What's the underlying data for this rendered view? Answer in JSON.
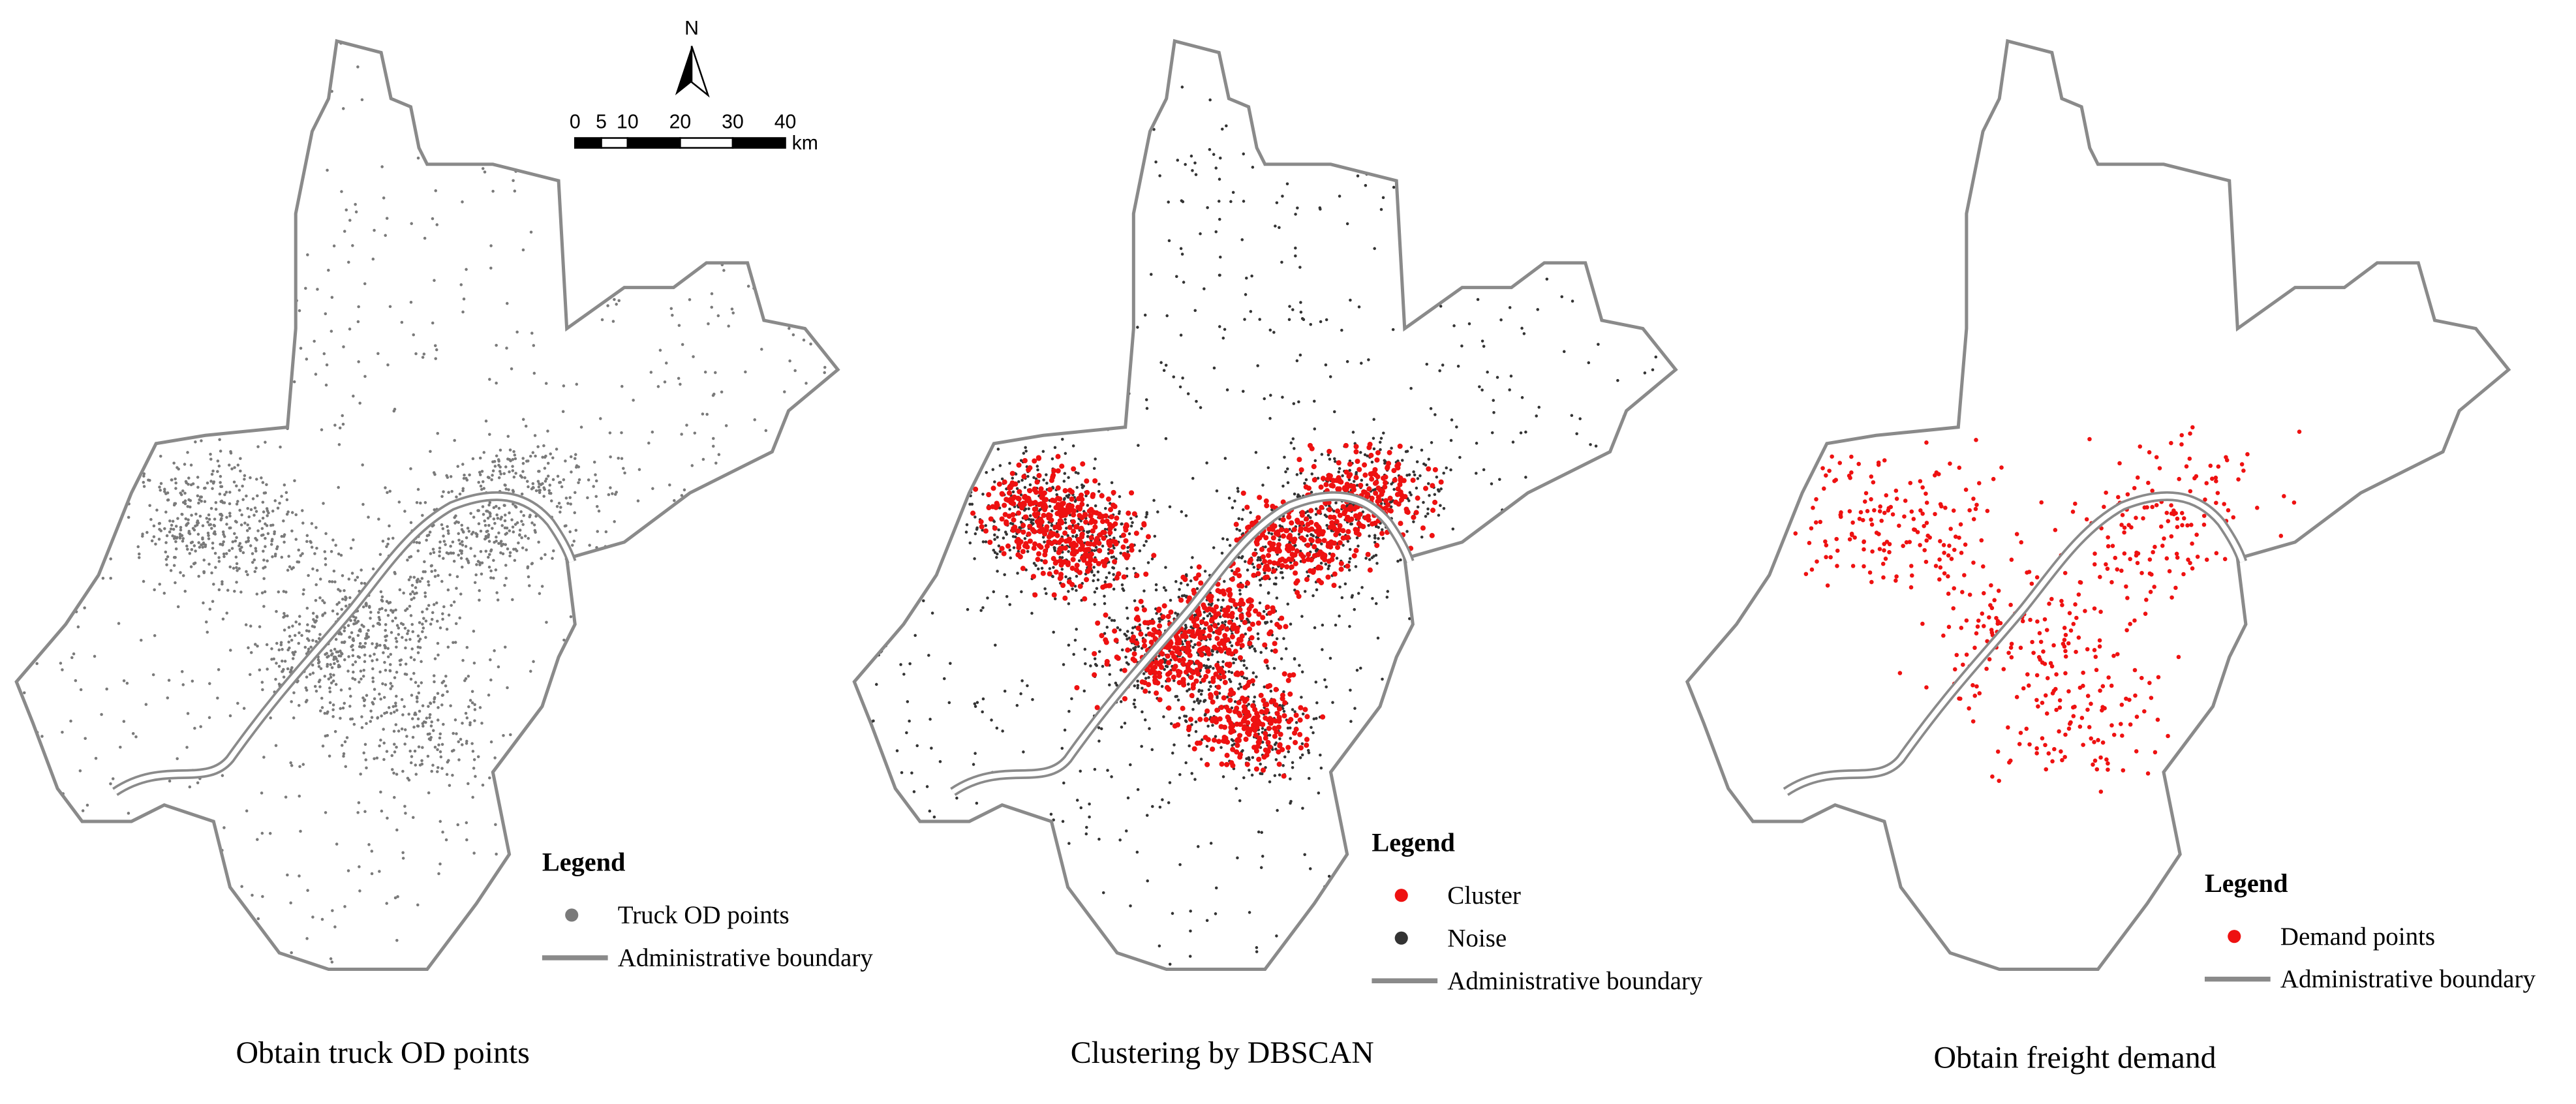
{
  "north": "N",
  "scale_bar": {
    "ticks": [
      0,
      5,
      10,
      20,
      30,
      40
    ],
    "unit": "km"
  },
  "panels": [
    {
      "caption": "Obtain truck OD points",
      "legend": {
        "title": "Legend",
        "items": [
          {
            "label": "Truck OD points",
            "symbol": "dot",
            "color": "#7a7a7a"
          },
          {
            "label": "Administrative boundary",
            "symbol": "line",
            "color": "#8a8a8a"
          }
        ]
      }
    },
    {
      "caption": "Clustering by DBSCAN",
      "legend": {
        "title": "Legend",
        "items": [
          {
            "label": "Cluster",
            "symbol": "dot",
            "color": "#ee1111"
          },
          {
            "label": "Noise",
            "symbol": "dot",
            "color": "#333333"
          },
          {
            "label": "Administrative boundary",
            "symbol": "line",
            "color": "#8a8a8a"
          }
        ]
      }
    },
    {
      "caption": "Obtain freight demand",
      "legend": {
        "title": "Legend",
        "items": [
          {
            "label": "Demand points",
            "symbol": "dot",
            "color": "#ee1111"
          },
          {
            "label": "Administrative boundary",
            "symbol": "line",
            "color": "#8a8a8a"
          }
        ]
      }
    }
  ]
}
